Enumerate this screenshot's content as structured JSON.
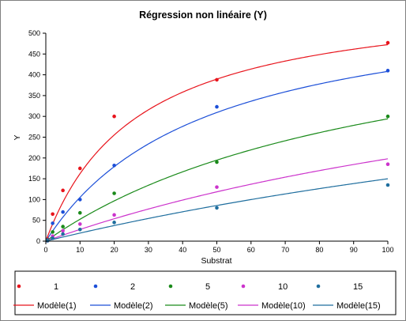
{
  "chart_data": {
    "type": "scatter",
    "title": "Régression non linéaire (Y)",
    "xlabel": "Substrat",
    "ylabel": "Y",
    "xlim": [
      0,
      100
    ],
    "ylim": [
      0,
      500
    ],
    "x_ticks": [
      0,
      10,
      20,
      30,
      40,
      50,
      60,
      70,
      80,
      90,
      100
    ],
    "y_ticks": [
      0,
      50,
      100,
      150,
      200,
      250,
      300,
      350,
      400,
      450,
      500
    ],
    "grid": false,
    "legend_position": "bottom",
    "x": [
      0.5,
      2,
      5,
      10,
      20,
      50,
      100
    ],
    "series": [
      {
        "name": "1",
        "color": "#e8141c",
        "values": [
          5,
          65,
          122,
          175,
          300,
          388,
          477
        ]
      },
      {
        "name": "2",
        "color": "#1c4fd8",
        "values": [
          3,
          43,
          70,
          100,
          182,
          323,
          410
        ]
      },
      {
        "name": "5",
        "color": "#1a8a1a",
        "values": [
          2,
          22,
          35,
          68,
          115,
          190,
          300
        ]
      },
      {
        "name": "10",
        "color": "#cc33cc",
        "values": [
          1,
          12,
          25,
          41,
          63,
          130,
          185
        ]
      },
      {
        "name": "15",
        "color": "#1f6e9e",
        "values": [
          1,
          7,
          17,
          28,
          45,
          80,
          135
        ]
      }
    ],
    "models": [
      {
        "name": "Modèle(1)",
        "color": "#e8141c",
        "vmax": 600,
        "km": 27
      },
      {
        "name": "Modèle(2)",
        "color": "#1c4fd8",
        "vmax": 600,
        "km": 47
      },
      {
        "name": "Modèle(5)",
        "color": "#1a8a1a",
        "vmax": 600,
        "km": 104
      },
      {
        "name": "Modèle(10)",
        "color": "#cc33cc",
        "vmax": 600,
        "km": 203
      },
      {
        "name": "Modèle(15)",
        "color": "#1f6e9e",
        "vmax": 600,
        "km": 300
      }
    ]
  }
}
